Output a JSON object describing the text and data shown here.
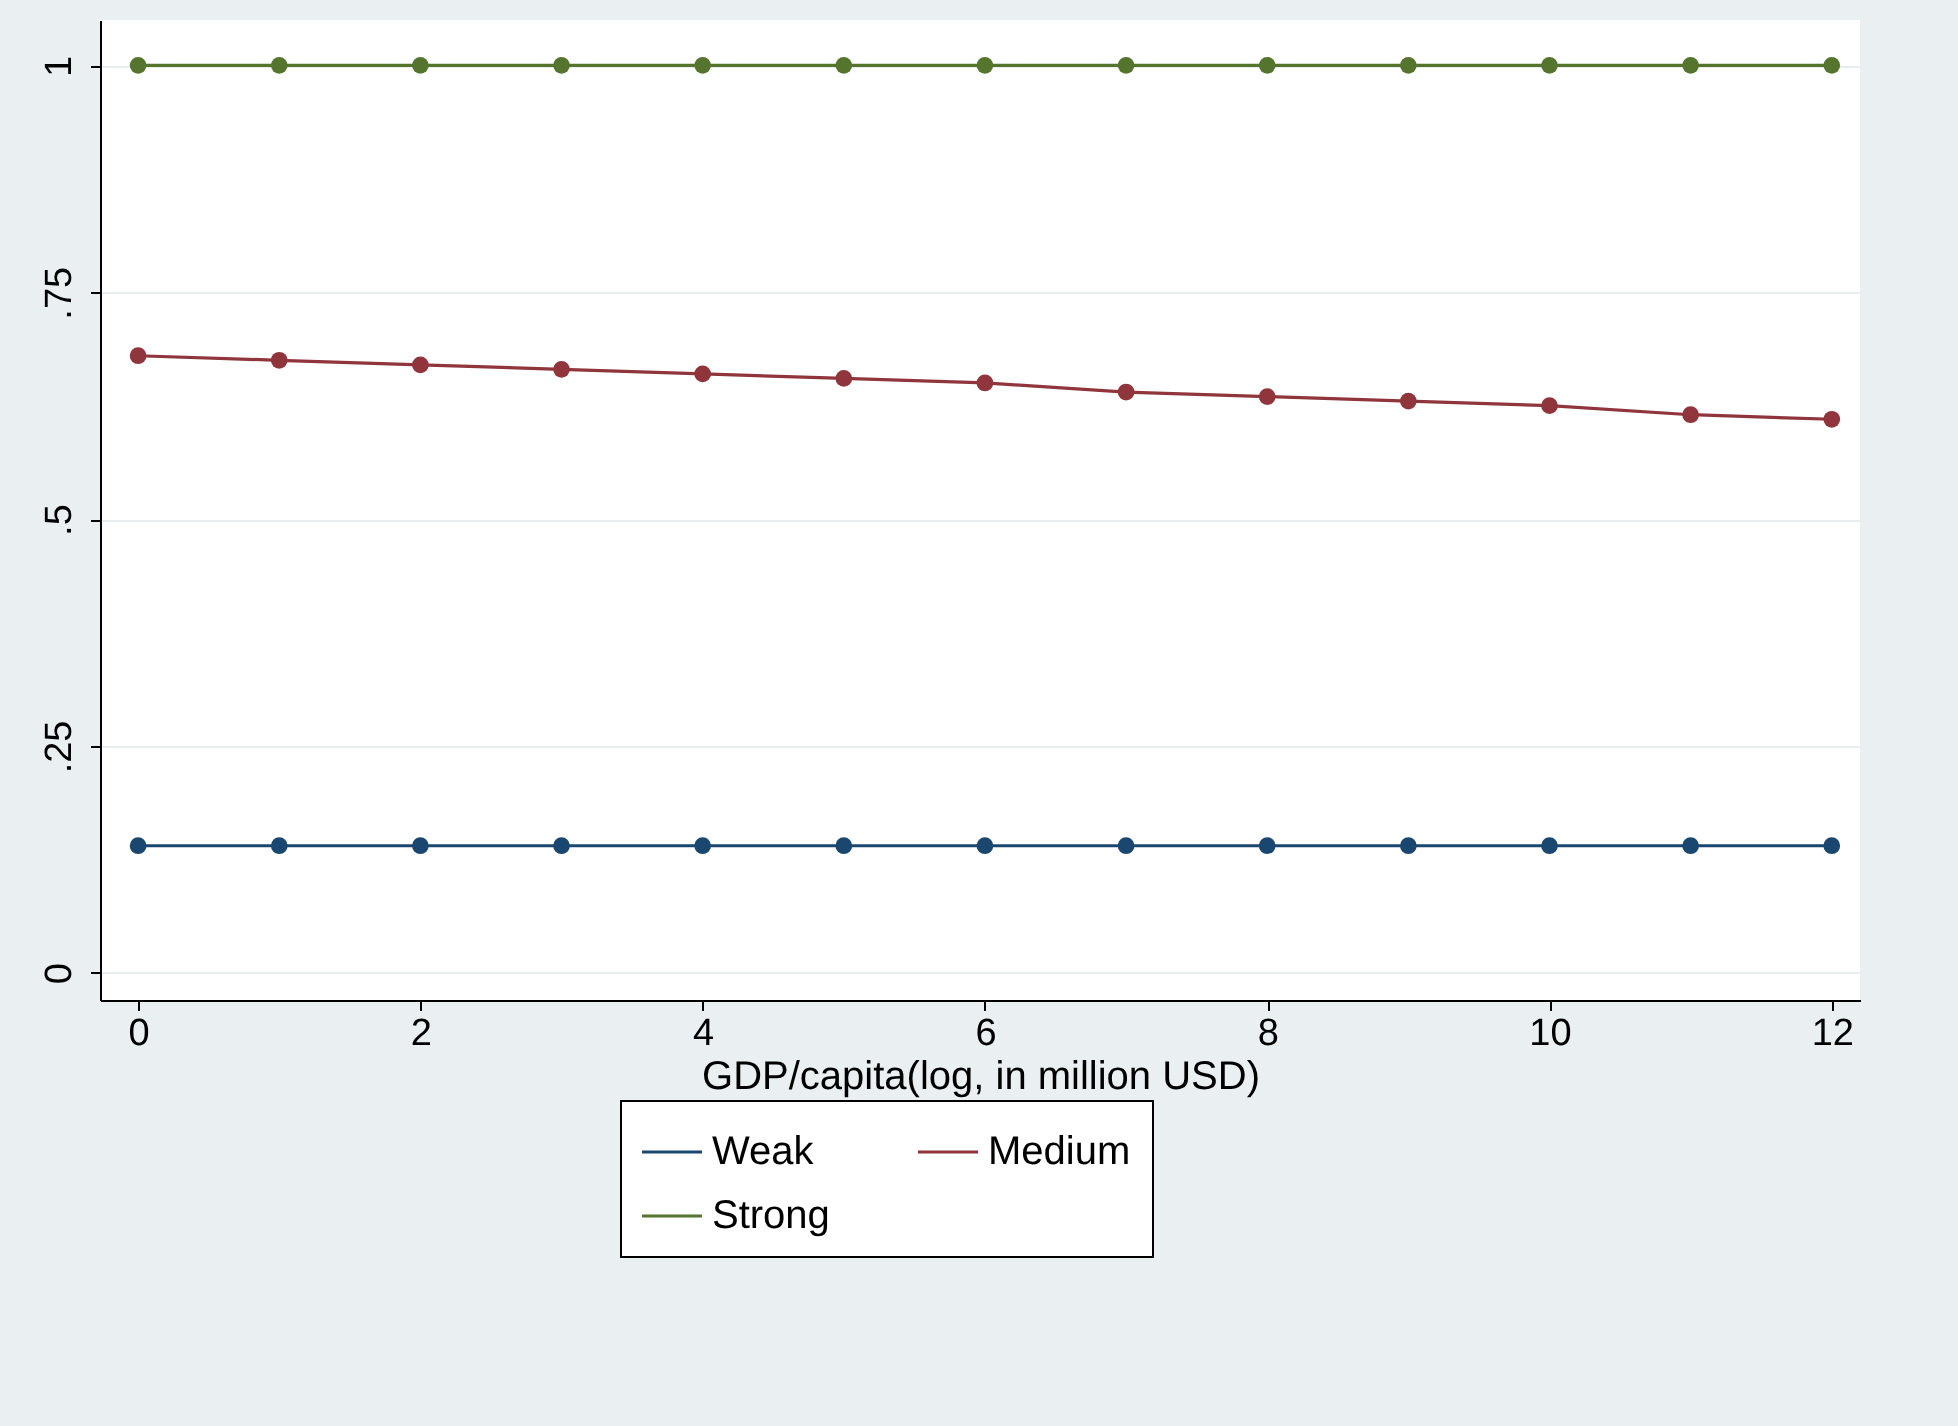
{
  "chart_data": {
    "type": "line",
    "xlabel": "GDP/capita(log, in million USD)",
    "x": [
      0,
      1,
      2,
      3,
      4,
      5,
      6,
      7,
      8,
      9,
      10,
      11,
      12
    ],
    "series": [
      {
        "name": "Weak",
        "color": "#1a476f",
        "values": [
          0.14,
          0.14,
          0.14,
          0.14,
          0.14,
          0.14,
          0.14,
          0.14,
          0.14,
          0.14,
          0.14,
          0.14,
          0.14
        ]
      },
      {
        "name": "Medium",
        "color": "#90353b",
        "values": [
          0.68,
          0.675,
          0.67,
          0.665,
          0.66,
          0.655,
          0.65,
          0.64,
          0.635,
          0.63,
          0.625,
          0.615,
          0.61
        ]
      },
      {
        "name": "Strong",
        "color": "#55752f",
        "values": [
          1,
          1,
          1,
          1,
          1,
          1,
          1,
          1,
          1,
          1,
          1,
          1,
          1
        ]
      }
    ],
    "xlim": [
      -0.27,
      12.2
    ],
    "xticks": [
      0,
      2,
      4,
      6,
      8,
      10,
      12
    ],
    "ylim": [
      -0.03,
      1.05
    ],
    "yticks": [
      {
        "value": 0,
        "label": "0"
      },
      {
        "value": 0.25,
        "label": ".25"
      },
      {
        "value": 0.5,
        "label": ".5"
      },
      {
        "value": 0.75,
        "label": ".75"
      },
      {
        "value": 1,
        "label": "1"
      }
    ],
    "grid": "y",
    "legend": "bottom",
    "marker": "circle",
    "line_style": "solid"
  }
}
